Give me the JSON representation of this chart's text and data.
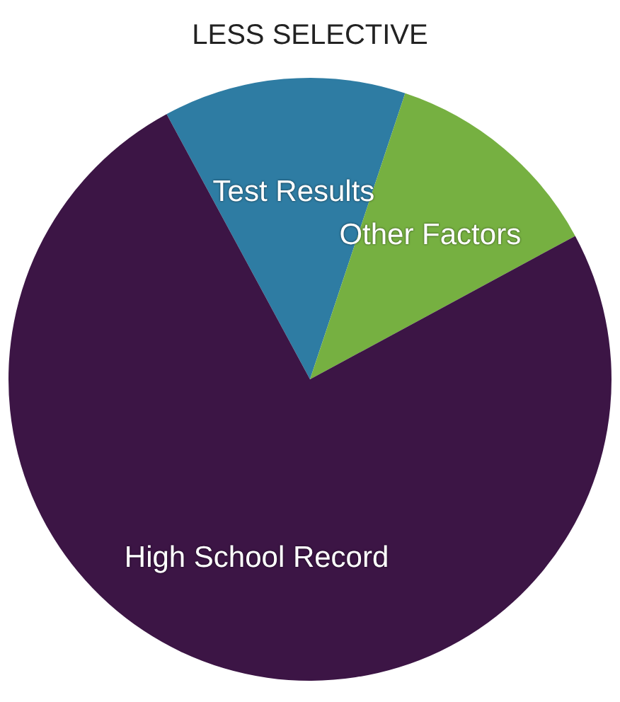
{
  "chart_data": {
    "type": "pie",
    "title": "LESS SELECTIVE",
    "categories": [
      "Test Results",
      "Other Factors",
      "High School Record"
    ],
    "values": [
      13,
      12,
      75
    ],
    "colors": [
      "#2e7ca3",
      "#76b041",
      "#3c1545"
    ],
    "legend": false
  }
}
